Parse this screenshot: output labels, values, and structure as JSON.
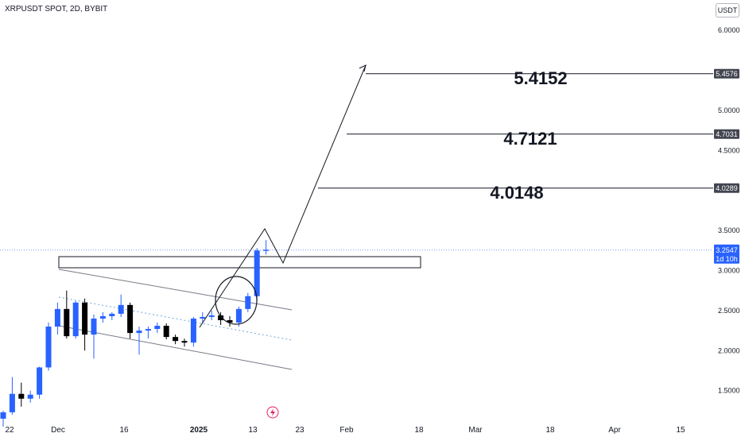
{
  "header": {
    "title": "XRPUSDT SPOT, 2D, BYBIT",
    "currency": "USDT"
  },
  "chart_data": {
    "type": "candlestick",
    "y_ticks": [
      "6.0000",
      "5.0000",
      "4.5000",
      "3.5000",
      "3.0000",
      "2.5000",
      "2.0000",
      "1.5000"
    ],
    "x_ticks": [
      "22",
      "Dec",
      "16",
      "2025",
      "13",
      "23",
      "Feb",
      "18",
      "Mar",
      "18",
      "Apr",
      "15"
    ],
    "ylim": [
      1.1,
      6.1
    ],
    "candles": [
      {
        "o": 1.15,
        "h": 1.25,
        "l": 1.05,
        "c": 1.23,
        "d": "up"
      },
      {
        "o": 1.23,
        "h": 1.67,
        "l": 1.2,
        "c": 1.46,
        "d": "up"
      },
      {
        "o": 1.46,
        "h": 1.6,
        "l": 1.3,
        "c": 1.4,
        "d": "down"
      },
      {
        "o": 1.4,
        "h": 1.5,
        "l": 1.35,
        "c": 1.45,
        "d": "up"
      },
      {
        "o": 1.45,
        "h": 1.8,
        "l": 1.4,
        "c": 1.79,
        "d": "up"
      },
      {
        "o": 1.79,
        "h": 2.35,
        "l": 1.75,
        "c": 2.3,
        "d": "up"
      },
      {
        "o": 2.3,
        "h": 2.6,
        "l": 2.2,
        "c": 2.52,
        "d": "up"
      },
      {
        "o": 2.52,
        "h": 2.75,
        "l": 2.15,
        "c": 2.18,
        "d": "down"
      },
      {
        "o": 2.18,
        "h": 2.62,
        "l": 2.15,
        "c": 2.6,
        "d": "up"
      },
      {
        "o": 2.6,
        "h": 2.65,
        "l": 2.0,
        "c": 2.2,
        "d": "down"
      },
      {
        "o": 2.2,
        "h": 2.45,
        "l": 1.9,
        "c": 2.4,
        "d": "up"
      },
      {
        "o": 2.4,
        "h": 2.48,
        "l": 2.35,
        "c": 2.43,
        "d": "up"
      },
      {
        "o": 2.43,
        "h": 2.48,
        "l": 2.38,
        "c": 2.46,
        "d": "up"
      },
      {
        "o": 2.46,
        "h": 2.7,
        "l": 2.42,
        "c": 2.57,
        "d": "up"
      },
      {
        "o": 2.57,
        "h": 2.6,
        "l": 2.15,
        "c": 2.22,
        "d": "down"
      },
      {
        "o": 2.22,
        "h": 2.3,
        "l": 1.95,
        "c": 2.25,
        "d": "up"
      },
      {
        "o": 2.25,
        "h": 2.3,
        "l": 2.15,
        "c": 2.27,
        "d": "up"
      },
      {
        "o": 2.27,
        "h": 2.35,
        "l": 2.22,
        "c": 2.31,
        "d": "up"
      },
      {
        "o": 2.31,
        "h": 2.34,
        "l": 2.14,
        "c": 2.17,
        "d": "down"
      },
      {
        "o": 2.17,
        "h": 2.2,
        "l": 2.08,
        "c": 2.12,
        "d": "down"
      },
      {
        "o": 2.12,
        "h": 2.15,
        "l": 2.05,
        "c": 2.1,
        "d": "down"
      },
      {
        "o": 2.1,
        "h": 2.42,
        "l": 2.05,
        "c": 2.4,
        "d": "up"
      },
      {
        "o": 2.4,
        "h": 2.48,
        "l": 2.35,
        "c": 2.42,
        "d": "up"
      },
      {
        "o": 2.42,
        "h": 2.5,
        "l": 2.38,
        "c": 2.44,
        "d": "up"
      },
      {
        "o": 2.44,
        "h": 2.48,
        "l": 2.32,
        "c": 2.38,
        "d": "down"
      },
      {
        "o": 2.38,
        "h": 2.43,
        "l": 2.3,
        "c": 2.35,
        "d": "down"
      },
      {
        "o": 2.35,
        "h": 2.55,
        "l": 2.3,
        "c": 2.52,
        "d": "up"
      },
      {
        "o": 2.52,
        "h": 2.72,
        "l": 2.48,
        "c": 2.68,
        "d": "up"
      },
      {
        "o": 2.68,
        "h": 3.28,
        "l": 2.62,
        "c": 3.25,
        "d": "up"
      },
      {
        "o": 3.25,
        "h": 3.38,
        "l": 3.2,
        "c": 3.26,
        "d": "up"
      }
    ],
    "zone": {
      "top": 3.05,
      "bottom": 2.92
    },
    "targets": [
      {
        "label": "5.4152",
        "level": 5.4576,
        "tag": "5.4576"
      },
      {
        "label": "4.7121",
        "level": 4.7031,
        "tag": "4.7031"
      },
      {
        "label": "4.0148",
        "level": 4.0289,
        "tag": "4.0289"
      }
    ],
    "last_price": {
      "value": 3.2547,
      "tag": "3.2547",
      "countdown": "1d 10h"
    },
    "colors": {
      "up": "#2962ff",
      "down": "#000000",
      "tag": "#434651",
      "last": "#2962ff",
      "pattern": "#131722"
    }
  }
}
